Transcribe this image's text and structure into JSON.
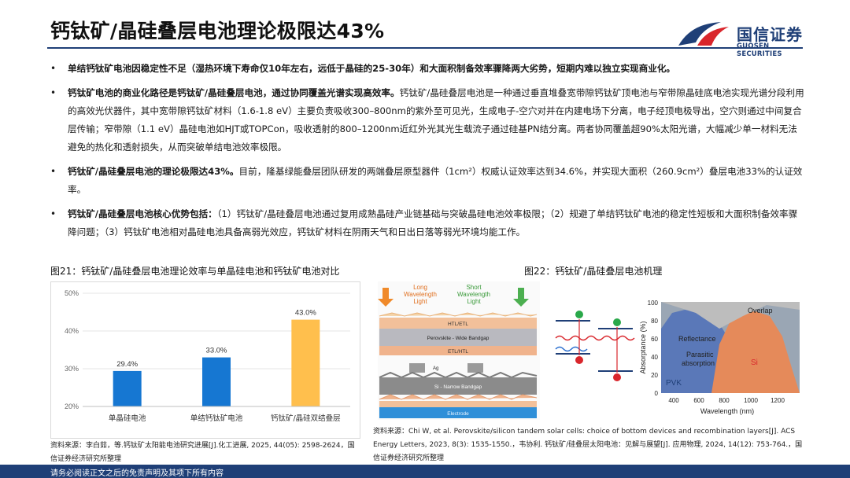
{
  "title": "钙钛矿/晶硅叠层电池理论极限达43%",
  "logo": {
    "cn": "国信证券",
    "en": "GUOSEN SECURITIES"
  },
  "bullets": [
    {
      "bold": "单结钙钛矿电池因稳定性不足（湿热环境下寿命仅10年左右，远低于晶硅的25-30年）和大面积制备效率骤降两大劣势，短期内难以独立实现商业化。",
      "text": ""
    },
    {
      "bold": "钙钛矿电池的商业化路径是钙钛矿/晶硅叠层电池，通过协同覆盖光谱实现高效率。",
      "text": "钙钛矿/晶硅叠层电池是一种通过垂直堆叠宽带隙钙钛矿顶电池与窄带隙晶硅底电池实现光谱分段利用的高效光伏器件，其中宽带隙钙钛矿材料（1.6-1.8 eV）主要负责吸收300–800nm的紫外至可见光，生成电子-空穴对并在内建电场下分离，电子经顶电极导出，空穴则通过中间复合层传输；窄带隙（1.1 eV）晶硅电池如HJT或TOPCon，吸收透射的800–1200nm近红外光其光生载流子通过硅基PN结分离。两者协同覆盖超90%太阳光谱，大幅减少单一材料无法避免的热化和透射损失，从而突破单结电池效率极限。"
    },
    {
      "bold": "钙钛矿/晶硅叠层电池的理论极限达43%。",
      "text": "目前，隆基绿能叠层团队研发的两端叠层原型器件（1cm²）权威认证效率达到34.6%，并实现大面积（260.9cm²）叠层电池33%的认证效率。"
    },
    {
      "bold": "钙钛矿/晶硅叠层电池核心优势包括：",
      "text": "（1）钙钛矿/晶硅叠层电池通过复用成熟晶硅产业链基础与突破晶硅电池效率极限；（2）规避了单结钙钛矿电池的稳定性短板和大面积制备效率骤降问题；（3）钙钛矿电池相对晶硅电池具备高弱光效应，钙钛矿材料在阴雨天气和日出日落等弱光环境均能工作。"
    }
  ],
  "fig21": {
    "caption": "图21：钙钛矿/晶硅叠层电池理论效率与单晶硅电池和钙钛矿电池对比",
    "source": "资料来源：李白茹，等.钙钛矿太阳能电池研究进展[J].化工进展, 2025, 44(05): 2598-2624，国信证券经济研究所整理"
  },
  "fig22": {
    "caption": "图22：钙钛矿/晶硅叠层电池机理",
    "source": "资料来源：Chi W, et al. Perovskite/silicon tandem solar cells: choice of bottom devices and recombination layers[J]. ACS Energy Letters, 2023, 8(3): 1535-1550.，韦协利. 钙钛矿/硅叠层太阳电池：见解与展望[J]. 应用物理, 2024, 14(12): 753-764.，国信证券经济研究所整理",
    "labels": {
      "long": "Long Wavelength Light",
      "short": "Short Wavelength Light",
      "htl": "HTL/ETL",
      "pvk": "Perovskite - Wide Bandgap",
      "etl": "ETL/HTL",
      "ag": "Ag",
      "si": "Si - Narrow Bandgap",
      "electrode": "Electrode",
      "overlap": "Overlap",
      "reflectance": "Reflectance",
      "parasitic": "Parasitic absorption",
      "si2": "Si",
      "pvk2": "PVK",
      "ylabel": "Absorptance (%)",
      "xlabel": "Wavelength (nm)",
      "yticks": [
        "0",
        "20",
        "40",
        "60",
        "80",
        "100"
      ],
      "xticks": [
        "400",
        "600",
        "800",
        "1000",
        "1200"
      ]
    }
  },
  "chart_data": {
    "type": "bar",
    "categories": [
      "单晶硅电池",
      "单结钙钛矿电池",
      "钙钛矿/晶硅双结叠层"
    ],
    "values": [
      29.4,
      33.0,
      43.0
    ],
    "value_labels": [
      "29.4%",
      "33.0%",
      "43.0%"
    ],
    "colors": [
      "#1677d2",
      "#1677d2",
      "#ffbf4d"
    ],
    "ylim": [
      20,
      50
    ],
    "yticks": [
      "20%",
      "30%",
      "40%",
      "50%"
    ],
    "grid": true
  },
  "footer": "请务必阅读正文之后的免责声明及其项下所有内容"
}
